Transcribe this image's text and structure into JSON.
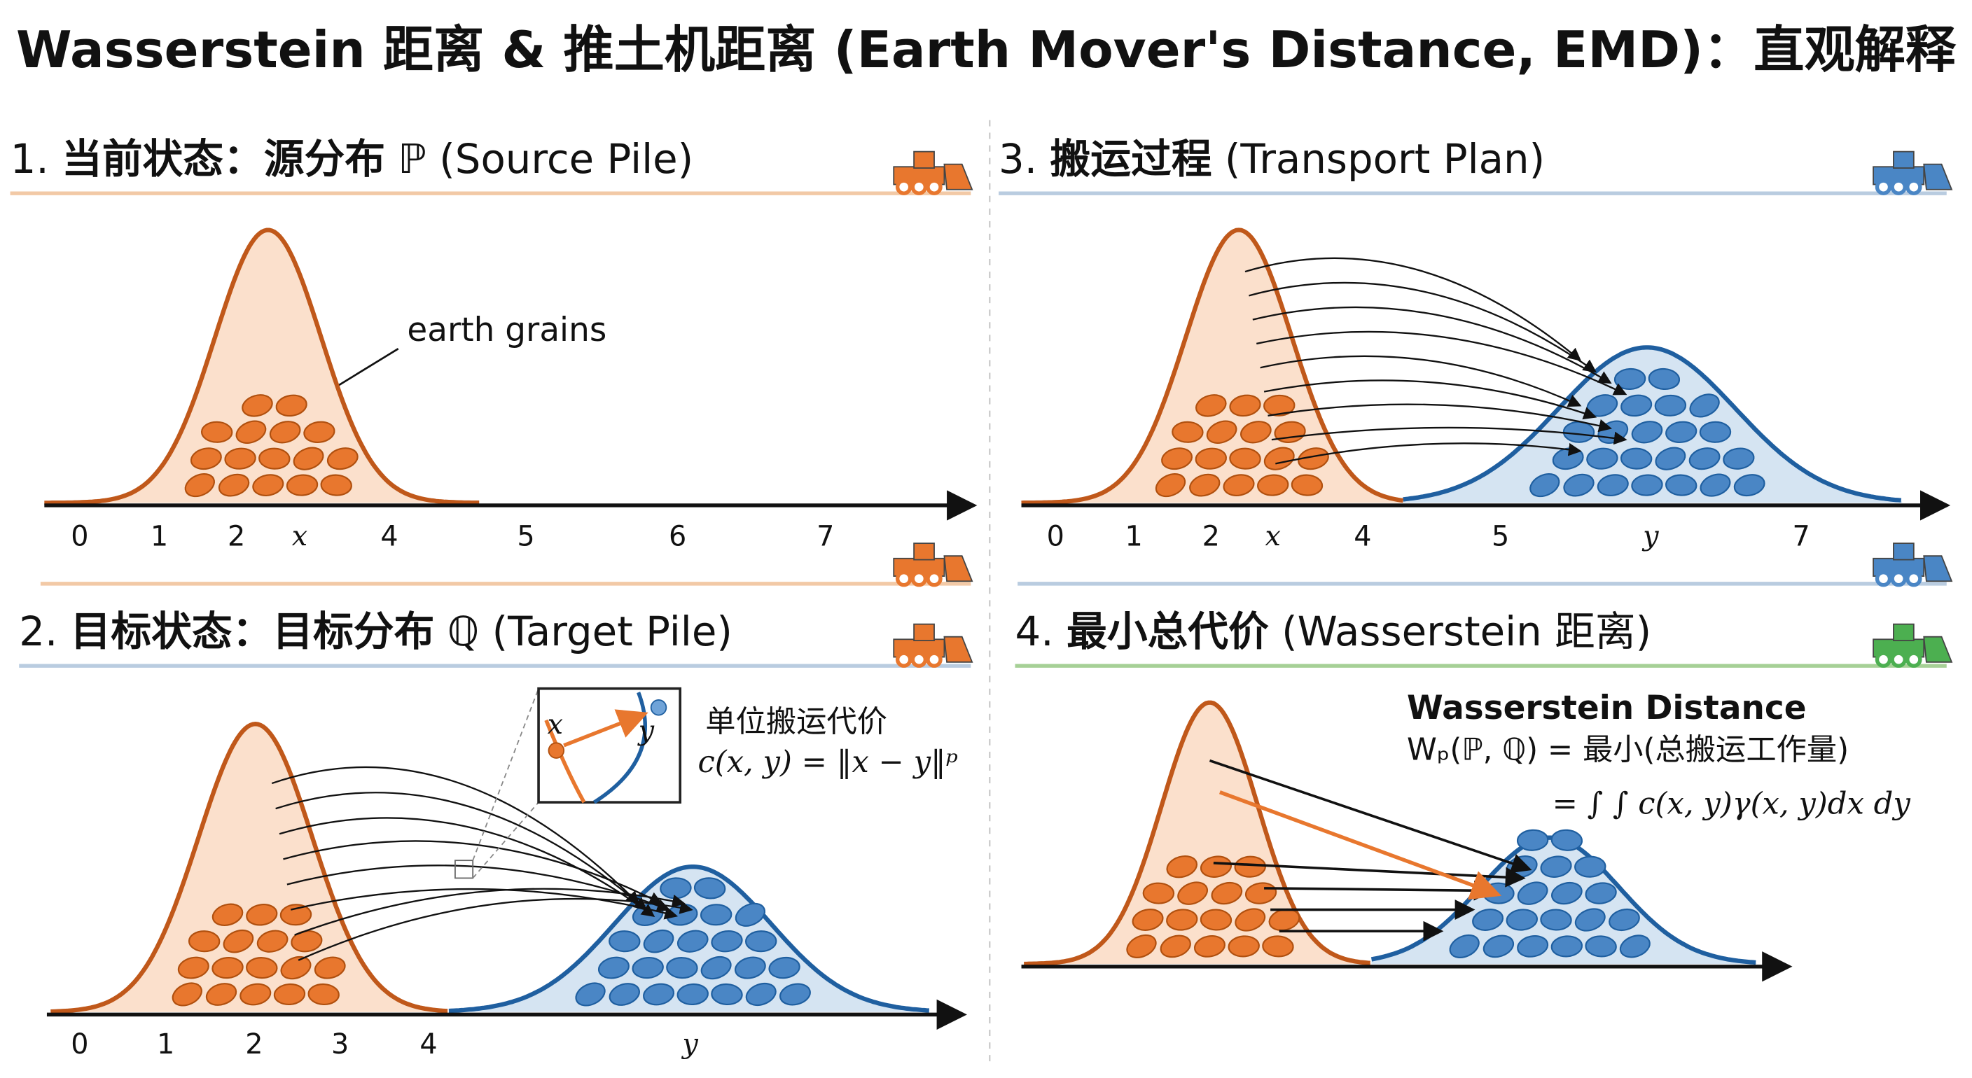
{
  "title": "Wasserstein 距离 & 推土机距离 (Earth Mover's Distance, EMD)：直观解释",
  "panels": [
    {
      "number": "1.",
      "heading": "当前状态：源分布",
      "symbol": "ℙ",
      "subtitle": "(Source Pile)",
      "annotation": "earth grains",
      "axis_labels": [
        "0",
        "1",
        "2",
        "x",
        "4",
        "5",
        "6",
        "7"
      ]
    },
    {
      "number": "2.",
      "heading": "目标状态：目标分布",
      "symbol": "ℚ",
      "subtitle": "(Target Pile)",
      "axis_labels": [
        "0",
        "1",
        "2",
        "3",
        "4",
        "y"
      ],
      "inset": {
        "point_x": "x",
        "point_y": "y",
        "cost_title": "单位搬运代价",
        "cost_formula": "c(x, y) = ‖x − y‖ᵖ"
      }
    },
    {
      "number": "3.",
      "heading": "搬运过程",
      "subtitle": "(Transport Plan)",
      "axis_labels": [
        "0",
        "1",
        "2",
        "x",
        "4",
        "5",
        "y",
        "7"
      ]
    },
    {
      "number": "4.",
      "heading": "最小总代价",
      "subtitle": "(Wasserstein 距离)",
      "formula_title": "Wasserstein Distance",
      "formula_line1": "Wₚ(ℙ, ℚ) = 最小(总搬运工作量)",
      "formula_line2": "= ∫ ∫ c(x, y)γ(x, y)dx dy"
    }
  ]
}
